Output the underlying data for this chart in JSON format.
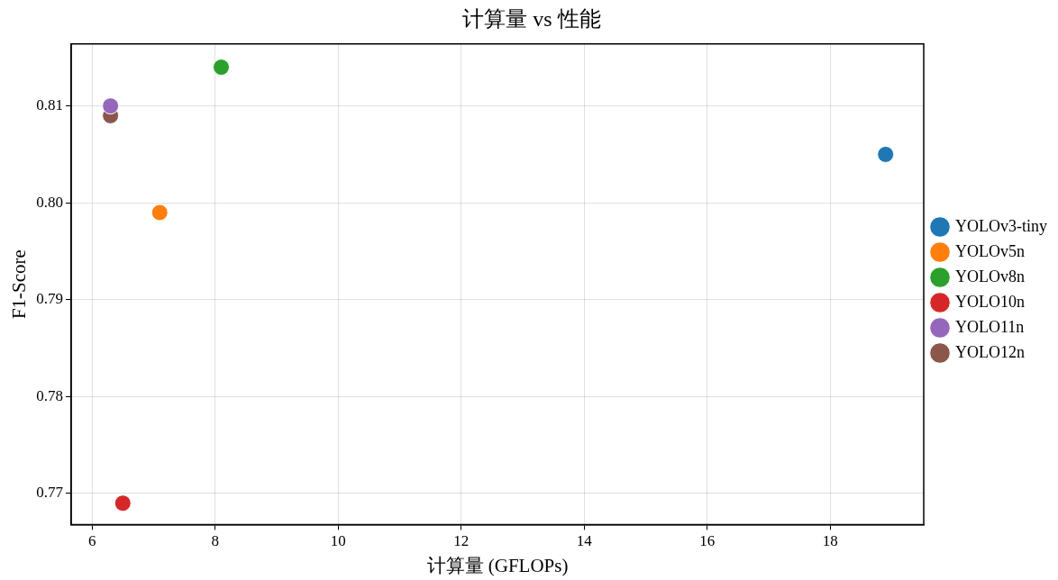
{
  "chart_data": {
    "type": "scatter",
    "title": "计算量 vs 性能",
    "xlabel": "计算量 (GFLOPs)",
    "ylabel": "F1-Score",
    "xlim": [
      5.66,
      19.52
    ],
    "xticks": [
      6,
      8,
      10,
      12,
      14,
      16,
      18
    ],
    "ylim": [
      0.7668,
      0.8164
    ],
    "yticks": [
      0.77,
      0.78,
      0.79,
      {
        "value": 0.8,
        "label": "0.80"
      },
      0.81
    ],
    "series": [
      {
        "name": "YOLOv3-tiny",
        "color": "#1f77b4",
        "x": [
          18.9
        ],
        "values": [
          0.805
        ]
      },
      {
        "name": "YOLOv5n",
        "color": "#ff7f0e",
        "x": [
          7.1
        ],
        "values": [
          0.799
        ]
      },
      {
        "name": "YOLOv8n",
        "color": "#2ca02c",
        "x": [
          8.1
        ],
        "values": [
          0.814
        ]
      },
      {
        "name": "YOLO10n",
        "color": "#d62728",
        "x": [
          6.5
        ],
        "values": [
          0.769
        ]
      },
      {
        "name": "YOLO11n",
        "color": "#9467bd",
        "x": [
          6.3
        ],
        "values": [
          0.81
        ]
      },
      {
        "name": "YOLO12n",
        "color": "#8c564b",
        "x": [
          6.3
        ],
        "values": [
          0.809
        ]
      }
    ],
    "grid": true,
    "legend": "right",
    "marker": "circle"
  }
}
